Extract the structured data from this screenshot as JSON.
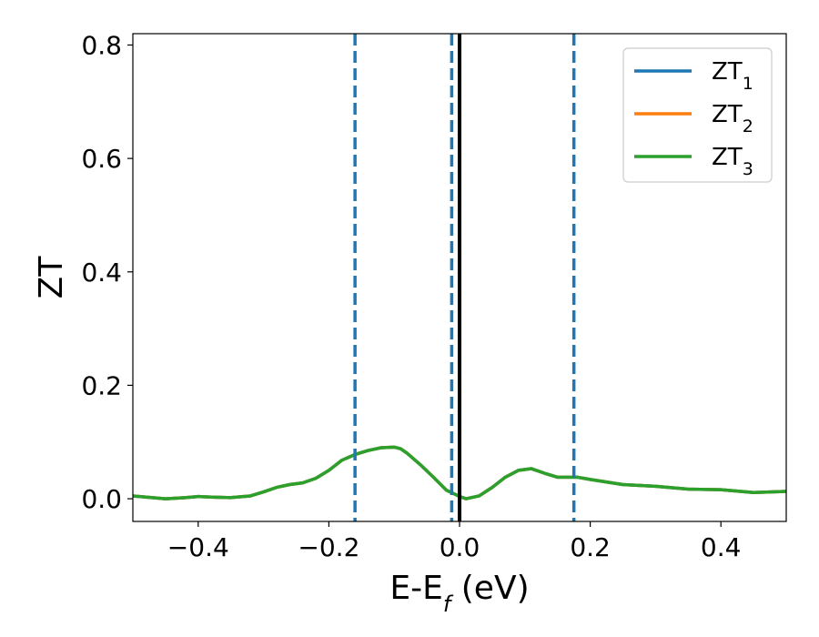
{
  "chart_data": {
    "type": "line",
    "title": "",
    "xlabel": {
      "main": "E-E",
      "sub": "f",
      "tail": " (eV)"
    },
    "ylabel": "ZT",
    "xlim": [
      -0.5,
      0.5
    ],
    "ylim": [
      -0.04,
      0.82
    ],
    "xticks": [
      -0.4,
      -0.2,
      0.0,
      0.2,
      0.4
    ],
    "xtick_labels": [
      "−0.4",
      "−0.2",
      "0.0",
      "0.2",
      "0.4"
    ],
    "yticks": [
      0.0,
      0.2,
      0.4,
      0.6,
      0.8
    ],
    "ytick_labels": [
      "0.0",
      "0.2",
      "0.4",
      "0.6",
      "0.8"
    ],
    "grid": false,
    "legend_position": "top-right",
    "series": [
      {
        "name": {
          "main": "ZT",
          "sub": "1"
        },
        "color": "#1f77b4",
        "x": [
          -0.5,
          -0.47,
          -0.45,
          -0.42,
          -0.4,
          -0.38,
          -0.35,
          -0.32,
          -0.3,
          -0.28,
          -0.26,
          -0.24,
          -0.22,
          -0.2,
          -0.18,
          -0.16,
          -0.14,
          -0.12,
          -0.1,
          -0.09,
          -0.08,
          -0.06,
          -0.04,
          -0.02,
          0.0,
          0.01,
          0.03,
          0.05,
          0.07,
          0.09,
          0.11,
          0.13,
          0.15,
          0.18,
          0.2,
          0.25,
          0.3,
          0.35,
          0.4,
          0.45,
          0.5
        ],
        "y": [
          0.005,
          0.002,
          0.0,
          0.002,
          0.004,
          0.003,
          0.002,
          0.005,
          0.012,
          0.02,
          0.025,
          0.028,
          0.036,
          0.05,
          0.068,
          0.078,
          0.085,
          0.09,
          0.091,
          0.088,
          0.08,
          0.06,
          0.038,
          0.015,
          0.004,
          0.0,
          0.005,
          0.02,
          0.038,
          0.05,
          0.053,
          0.045,
          0.038,
          0.038,
          0.034,
          0.025,
          0.022,
          0.017,
          0.016,
          0.011,
          0.013
        ]
      },
      {
        "name": {
          "main": "ZT",
          "sub": "2"
        },
        "color": "#ff7f0e",
        "x": [
          -0.5,
          -0.47,
          -0.45,
          -0.42,
          -0.4,
          -0.38,
          -0.35,
          -0.32,
          -0.3,
          -0.28,
          -0.26,
          -0.24,
          -0.22,
          -0.2,
          -0.18,
          -0.16,
          -0.14,
          -0.12,
          -0.1,
          -0.09,
          -0.08,
          -0.06,
          -0.04,
          -0.02,
          0.0,
          0.01,
          0.03,
          0.05,
          0.07,
          0.09,
          0.11,
          0.13,
          0.15,
          0.18,
          0.2,
          0.25,
          0.3,
          0.35,
          0.4,
          0.45,
          0.5
        ],
        "y": [
          0.005,
          0.002,
          0.0,
          0.002,
          0.004,
          0.003,
          0.002,
          0.005,
          0.012,
          0.02,
          0.025,
          0.028,
          0.036,
          0.05,
          0.068,
          0.078,
          0.085,
          0.09,
          0.091,
          0.088,
          0.08,
          0.06,
          0.038,
          0.015,
          0.004,
          0.0,
          0.005,
          0.02,
          0.038,
          0.05,
          0.053,
          0.045,
          0.038,
          0.038,
          0.034,
          0.025,
          0.022,
          0.017,
          0.016,
          0.011,
          0.013
        ]
      },
      {
        "name": {
          "main": "ZT",
          "sub": "3"
        },
        "color": "#2ca02c",
        "x": [
          -0.5,
          -0.47,
          -0.45,
          -0.42,
          -0.4,
          -0.38,
          -0.35,
          -0.32,
          -0.3,
          -0.28,
          -0.26,
          -0.24,
          -0.22,
          -0.2,
          -0.18,
          -0.16,
          -0.14,
          -0.12,
          -0.1,
          -0.09,
          -0.08,
          -0.06,
          -0.04,
          -0.02,
          0.0,
          0.01,
          0.03,
          0.05,
          0.07,
          0.09,
          0.11,
          0.13,
          0.15,
          0.18,
          0.2,
          0.25,
          0.3,
          0.35,
          0.4,
          0.45,
          0.5
        ],
        "y": [
          0.005,
          0.002,
          0.0,
          0.002,
          0.004,
          0.003,
          0.002,
          0.005,
          0.012,
          0.02,
          0.025,
          0.028,
          0.036,
          0.05,
          0.068,
          0.078,
          0.085,
          0.09,
          0.091,
          0.088,
          0.08,
          0.06,
          0.038,
          0.015,
          0.004,
          0.0,
          0.005,
          0.02,
          0.038,
          0.05,
          0.053,
          0.045,
          0.038,
          0.038,
          0.034,
          0.025,
          0.022,
          0.017,
          0.016,
          0.011,
          0.013
        ]
      }
    ],
    "vlines": [
      {
        "x": 0.0,
        "style": "solid",
        "color": "#000000"
      },
      {
        "x": -0.16,
        "style": "dashed",
        "color": "#1f77b4"
      },
      {
        "x": -0.012,
        "style": "dashed",
        "color": "#1f77b4"
      },
      {
        "x": 0.175,
        "style": "dashed",
        "color": "#1f77b4"
      }
    ]
  }
}
